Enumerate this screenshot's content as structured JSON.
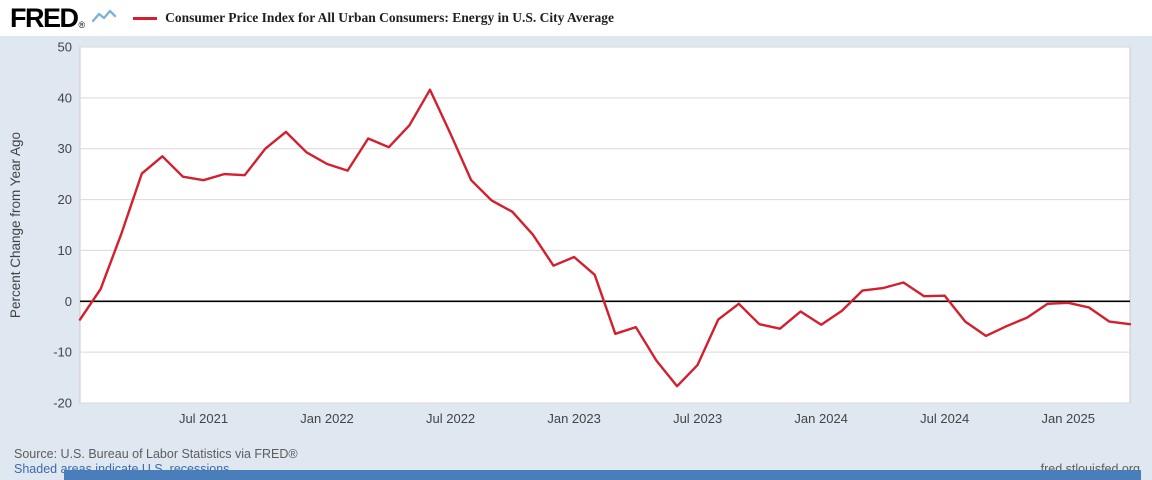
{
  "header": {
    "logo": "FRED",
    "registered_mark": "®",
    "legend_label": "Consumer Price Index for All Urban Consumers: Energy in U.S. City Average"
  },
  "footer": {
    "source": "Source: U.S. Bureau of Labor Statistics via FRED®",
    "recession_note": "Shaded areas indicate U.S. recessions.",
    "site_link": "fred.stlouisfed.org"
  },
  "colors": {
    "series": "#d2202e",
    "background": "#dfe7f0",
    "plot_background": "#ffffff",
    "grid": "#d9d9d9",
    "frame": "#c9c9c9",
    "zero_line": "#000000",
    "link": "#3d6bac",
    "bottom_bar": "#4a7eba"
  },
  "chart_data": {
    "type": "line",
    "title": "Consumer Price Index for All Urban Consumers: Energy in U.S. City Average",
    "ylabel": "Percent Change from Year Ago",
    "xlabel": "",
    "ylim": [
      -20,
      50
    ],
    "yticks": [
      50,
      40,
      30,
      20,
      10,
      0,
      -10,
      -20
    ],
    "grid": "horizontal",
    "zero_line": true,
    "legend_position": "top-left",
    "frequency": "monthly",
    "x": [
      "Jan 2021",
      "Feb 2021",
      "Mar 2021",
      "Apr 2021",
      "May 2021",
      "Jun 2021",
      "Jul 2021",
      "Aug 2021",
      "Sep 2021",
      "Oct 2021",
      "Nov 2021",
      "Dec 2021",
      "Jan 2022",
      "Feb 2022",
      "Mar 2022",
      "Apr 2022",
      "May 2022",
      "Jun 2022",
      "Jul 2022",
      "Aug 2022",
      "Sep 2022",
      "Oct 2022",
      "Nov 2022",
      "Dec 2022",
      "Jan 2023",
      "Feb 2023",
      "Mar 2023",
      "Apr 2023",
      "May 2023",
      "Jun 2023",
      "Jul 2023",
      "Aug 2023",
      "Sep 2023",
      "Oct 2023",
      "Nov 2023",
      "Dec 2023",
      "Jan 2024",
      "Feb 2024",
      "Mar 2024",
      "Apr 2024",
      "May 2024",
      "Jun 2024",
      "Jul 2024",
      "Aug 2024",
      "Sep 2024",
      "Oct 2024",
      "Nov 2024",
      "Dec 2024",
      "Jan 2025",
      "Feb 2025",
      "Mar 2025",
      "Apr 2025"
    ],
    "values": [
      -3.6,
      2.4,
      13.2,
      25.1,
      28.5,
      24.5,
      23.8,
      25.0,
      24.8,
      30.0,
      33.3,
      29.3,
      27.0,
      25.7,
      32.0,
      30.3,
      34.6,
      41.6,
      32.9,
      23.8,
      19.8,
      17.6,
      13.1,
      7.0,
      8.7,
      5.2,
      -6.4,
      -5.1,
      -11.7,
      -16.7,
      -12.5,
      -3.6,
      -0.5,
      -4.5,
      -5.4,
      -2.0,
      -4.6,
      -1.9,
      2.1,
      2.6,
      3.7,
      1.0,
      1.1,
      -4.0,
      -6.8,
      -4.9,
      -3.2,
      -0.5,
      -0.3,
      -1.2,
      -4.0,
      -4.5
    ],
    "x_ticks": [
      {
        "index": 6,
        "label": "Jul 2021"
      },
      {
        "index": 12,
        "label": "Jan 2022"
      },
      {
        "index": 18,
        "label": "Jul 2022"
      },
      {
        "index": 24,
        "label": "Jan 2023"
      },
      {
        "index": 30,
        "label": "Jul 2023"
      },
      {
        "index": 36,
        "label": "Jan 2024"
      },
      {
        "index": 42,
        "label": "Jul 2024"
      },
      {
        "index": 48,
        "label": "Jan 2025"
      }
    ]
  }
}
